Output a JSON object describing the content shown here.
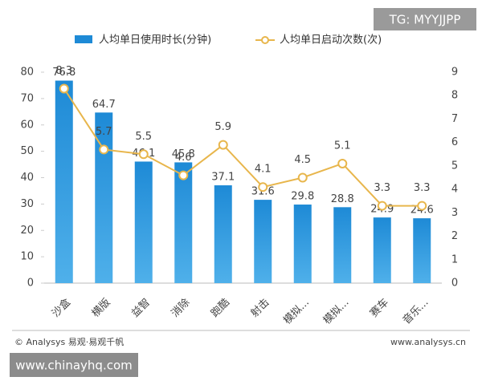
{
  "chart_data": {
    "type": "bar-line",
    "categories": [
      "沙盒",
      "横版",
      "益智",
      "消除",
      "跑酷",
      "射击",
      "模拟...",
      "模拟...",
      "赛车",
      "音乐..."
    ],
    "series": [
      {
        "name": "人均单日使用时长(分钟)",
        "type": "bar",
        "color": "#1e8ad6",
        "values": [
          76.8,
          64.7,
          46.1,
          45.8,
          37.1,
          31.6,
          29.8,
          28.8,
          24.9,
          24.6
        ]
      },
      {
        "name": "人均单日启动次数(次)",
        "type": "line",
        "axis": "y2",
        "color": "#e8b64c",
        "values": [
          8.3,
          5.7,
          5.5,
          4.6,
          5.9,
          4.1,
          4.5,
          5.1,
          3.3,
          3.3
        ]
      }
    ],
    "ylim": [
      0,
      80
    ],
    "yticks": [
      0,
      10,
      20,
      30,
      40,
      50,
      60,
      70,
      80
    ],
    "y2lim": [
      0,
      9
    ],
    "y2ticks": [
      0,
      1,
      2,
      3,
      4,
      5,
      6,
      7,
      8,
      9
    ],
    "legend": "top"
  },
  "watermarks": {
    "top": "TG: MYYJJPP",
    "source": "© Analysys 易观·易观千帆",
    "site": "www.analysys.cn",
    "bottom": "www.chinayhq.com"
  }
}
